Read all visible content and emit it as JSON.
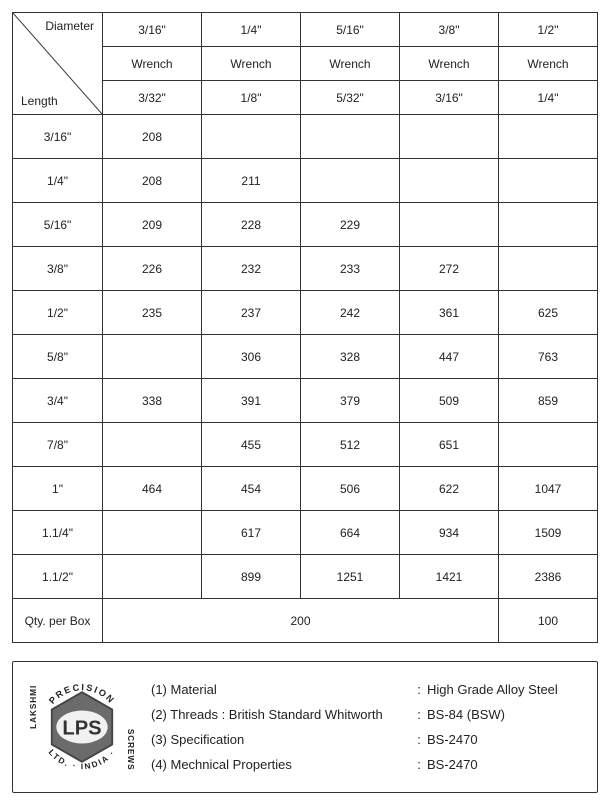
{
  "table": {
    "corner": {
      "top": "Diameter",
      "bottom": "Length"
    },
    "diameters": [
      "3/16\"",
      "1/4\"",
      "5/16\"",
      "3/8\"",
      "1/2\""
    ],
    "wrench_label": "Wrench",
    "wrench_sizes": [
      "3/32\"",
      "1/8\"",
      "5/32\"",
      "3/16\"",
      "1/4\""
    ],
    "rows": [
      {
        "length": "3/16\"",
        "cells": [
          "208",
          "",
          "",
          "",
          ""
        ]
      },
      {
        "length": "1/4\"",
        "cells": [
          "208",
          "211",
          "",
          "",
          ""
        ]
      },
      {
        "length": "5/16\"",
        "cells": [
          "209",
          "228",
          "229",
          "",
          ""
        ]
      },
      {
        "length": "3/8\"",
        "cells": [
          "226",
          "232",
          "233",
          "272",
          ""
        ]
      },
      {
        "length": "1/2\"",
        "cells": [
          "235",
          "237",
          "242",
          "361",
          "625"
        ]
      },
      {
        "length": "5/8\"",
        "cells": [
          "",
          "306",
          "328",
          "447",
          "763"
        ]
      },
      {
        "length": "3/4\"",
        "cells": [
          "338",
          "391",
          "379",
          "509",
          "859"
        ]
      },
      {
        "length": "7/8\"",
        "cells": [
          "",
          "455",
          "512",
          "651",
          ""
        ]
      },
      {
        "length": "1\"",
        "cells": [
          "464",
          "454",
          "506",
          "622",
          "1047"
        ]
      },
      {
        "length": "1.1/4\"",
        "cells": [
          "",
          "617",
          "664",
          "934",
          "1509"
        ]
      },
      {
        "length": "1.1/2\"",
        "cells": [
          "",
          "899",
          "1251",
          "1421",
          "2386"
        ]
      }
    ],
    "qty_label": "Qty. per Box",
    "qty_values": [
      "200",
      "100"
    ],
    "border_color": "#333333",
    "background": "#ffffff"
  },
  "specs": {
    "items": [
      {
        "label": "(1) Material",
        "value": "High Grade Alloy Steel"
      },
      {
        "label": "(2) Threads : British Standard Whitworth",
        "value": "BS-84 (BSW)"
      },
      {
        "label": "(3) Specification",
        "value": "BS-2470"
      },
      {
        "label": "(4) Mechnical Properties",
        "value": "BS-2470"
      }
    ],
    "logo": {
      "center_text": "LPS",
      "ring_text_top": "PRECISION",
      "ring_text_left": "LAKSHMI",
      "ring_text_right": "SCREWS",
      "ring_text_bottom_left": "LTD.",
      "ring_text_bottom_right": "INDIA",
      "hex_fill": "#6b6b6b",
      "text_color": "#ffffff",
      "ring_text_color": "#222222"
    }
  }
}
